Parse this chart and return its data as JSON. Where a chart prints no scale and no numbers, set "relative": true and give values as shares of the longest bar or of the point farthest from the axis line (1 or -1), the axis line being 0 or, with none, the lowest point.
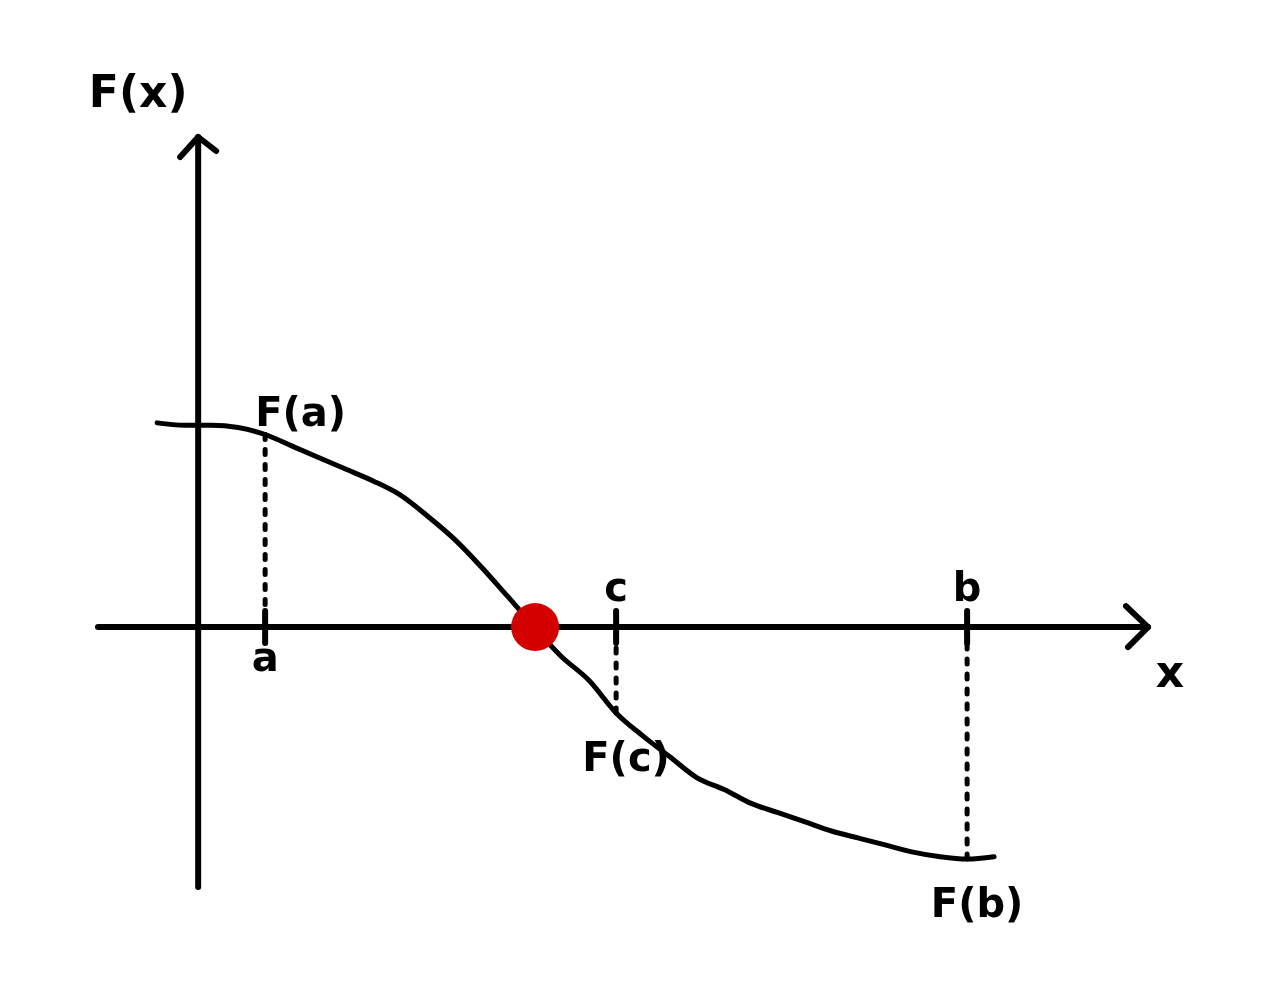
{
  "chart_data": {
    "type": "line",
    "relative": true,
    "xlabel": "x",
    "marker": "none",
    "categories": [
      null,
      null,
      null,
      null,
      "a",
      null,
      null,
      null,
      null,
      null,
      null,
      null,
      null,
      null,
      null,
      null,
      null,
      "c",
      null,
      null,
      null,
      null,
      null,
      null,
      null,
      null,
      null,
      null,
      null,
      null,
      "b",
      null
    ],
    "series": [
      {
        "color": "#000000",
        "values": [
          0.88,
          0.87,
          0.87,
          0.86,
          0.83,
          0.78,
          0.73,
          0.68,
          0.63,
          0.57,
          0.48,
          0.38,
          0.26,
          0.13,
          null,
          -0.13,
          -0.23,
          -0.37,
          -0.47,
          -0.56,
          -0.65,
          -0.7,
          -0.76,
          -0.8,
          -0.84,
          -0.88,
          -0.91,
          -0.94,
          -0.97,
          -0.99,
          -1,
          -0.99
        ]
      },
      {
        "type": "scatter",
        "color": "#d40000",
        "marker": "circle",
        "values": [
          null,
          null,
          null,
          null,
          null,
          null,
          null,
          null,
          null,
          null,
          null,
          null,
          null,
          null,
          0,
          null,
          null,
          null,
          null,
          null,
          null,
          null,
          null,
          null,
          null,
          null,
          null,
          null,
          null,
          null,
          null,
          null
        ]
      }
    ],
    "annotations": [
      "F(x)",
      {
        "text": "F(a)",
        "x": "a",
        "y": 0.83
      },
      {
        "text": "F(c)",
        "x": "c",
        "y": -0.37
      },
      {
        "text": "F(b)",
        "x": "b",
        "y": -1
      }
    ]
  }
}
